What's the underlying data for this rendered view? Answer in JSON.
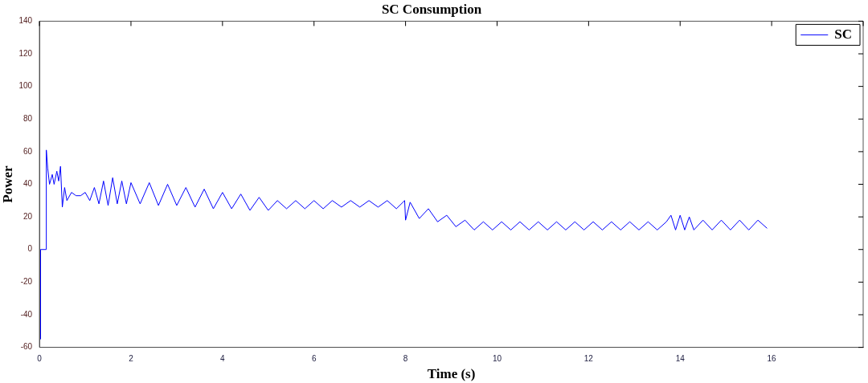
{
  "chart_data": {
    "type": "line",
    "title": "SC Consumption",
    "xlabel": "Time (s)",
    "ylabel": "Power",
    "xlim": [
      0,
      18
    ],
    "xticks": [
      0,
      2,
      4,
      6,
      8,
      10,
      12,
      14,
      16,
      {
        "value": 18,
        "label": null
      }
    ],
    "ylim": [
      -60,
      140
    ],
    "yticks": [
      -60,
      -40,
      -20,
      0,
      20,
      40,
      60,
      80,
      100,
      120,
      140
    ],
    "grid": false,
    "legend": "top right",
    "marker": "none",
    "line_style": "solid",
    "x": [
      0.02,
      0.025,
      0.14,
      0.15,
      0.18,
      0.22,
      0.28,
      0.32,
      0.38,
      0.42,
      0.46,
      0.5,
      0.55,
      0.6,
      0.7,
      0.8,
      0.9,
      1.0,
      1.1,
      1.2,
      1.3,
      1.4,
      1.5,
      1.6,
      1.7,
      1.8,
      1.9,
      2.0,
      2.2,
      2.4,
      2.6,
      2.8,
      3.0,
      3.2,
      3.4,
      3.6,
      3.8,
      4.0,
      4.2,
      4.4,
      4.6,
      4.8,
      5.0,
      5.2,
      5.4,
      5.6,
      5.8,
      6.0,
      6.2,
      6.4,
      6.6,
      6.8,
      7.0,
      7.2,
      7.4,
      7.6,
      7.8,
      7.98,
      8.0,
      8.1,
      8.3,
      8.5,
      8.7,
      8.9,
      9.1,
      9.3,
      9.5,
      9.7,
      9.9,
      10.1,
      10.3,
      10.5,
      10.7,
      10.9,
      11.1,
      11.3,
      11.5,
      11.7,
      11.9,
      12.1,
      12.3,
      12.5,
      12.7,
      12.9,
      13.1,
      13.3,
      13.5,
      13.7,
      13.8,
      13.9,
      14.0,
      14.1,
      14.2,
      14.3,
      14.5,
      14.7,
      14.9,
      15.1,
      15.3,
      15.5,
      15.7,
      15.9
    ],
    "series": [
      {
        "name": "SC",
        "color": "#0000ff",
        "values": [
          -55,
          0,
          0,
          61,
          50,
          40,
          46,
          40,
          48,
          42,
          51,
          26,
          38,
          30,
          35,
          33,
          33,
          35,
          30,
          38,
          28,
          42,
          27,
          44,
          28,
          42,
          28,
          41,
          28,
          41,
          27,
          40,
          27,
          38,
          26,
          37,
          25,
          35,
          25,
          34,
          24,
          32,
          24,
          30,
          25,
          30,
          25,
          30,
          25,
          30,
          26,
          30,
          26,
          30,
          26,
          30,
          25,
          30,
          18,
          29,
          19,
          25,
          17,
          21,
          14,
          18,
          12,
          17,
          12,
          17,
          12,
          17,
          12,
          17,
          12,
          17,
          12,
          17,
          12,
          17,
          12,
          17,
          12,
          17,
          12,
          17,
          12,
          17,
          21,
          12,
          21,
          12,
          20,
          12,
          18,
          12,
          18,
          12,
          18,
          12,
          18,
          13
        ]
      }
    ]
  }
}
